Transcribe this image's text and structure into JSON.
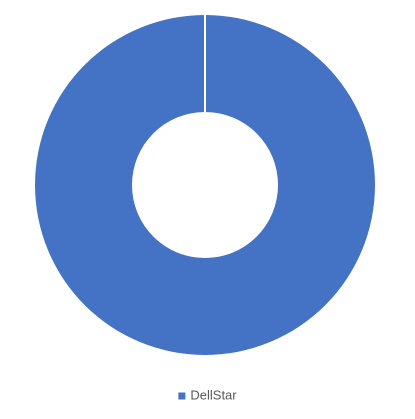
{
  "chart_data": {
    "type": "donut",
    "categories": [
      "DellStar"
    ],
    "values": [
      100
    ],
    "colors": [
      "#4472c4"
    ],
    "legend": "bottom"
  }
}
